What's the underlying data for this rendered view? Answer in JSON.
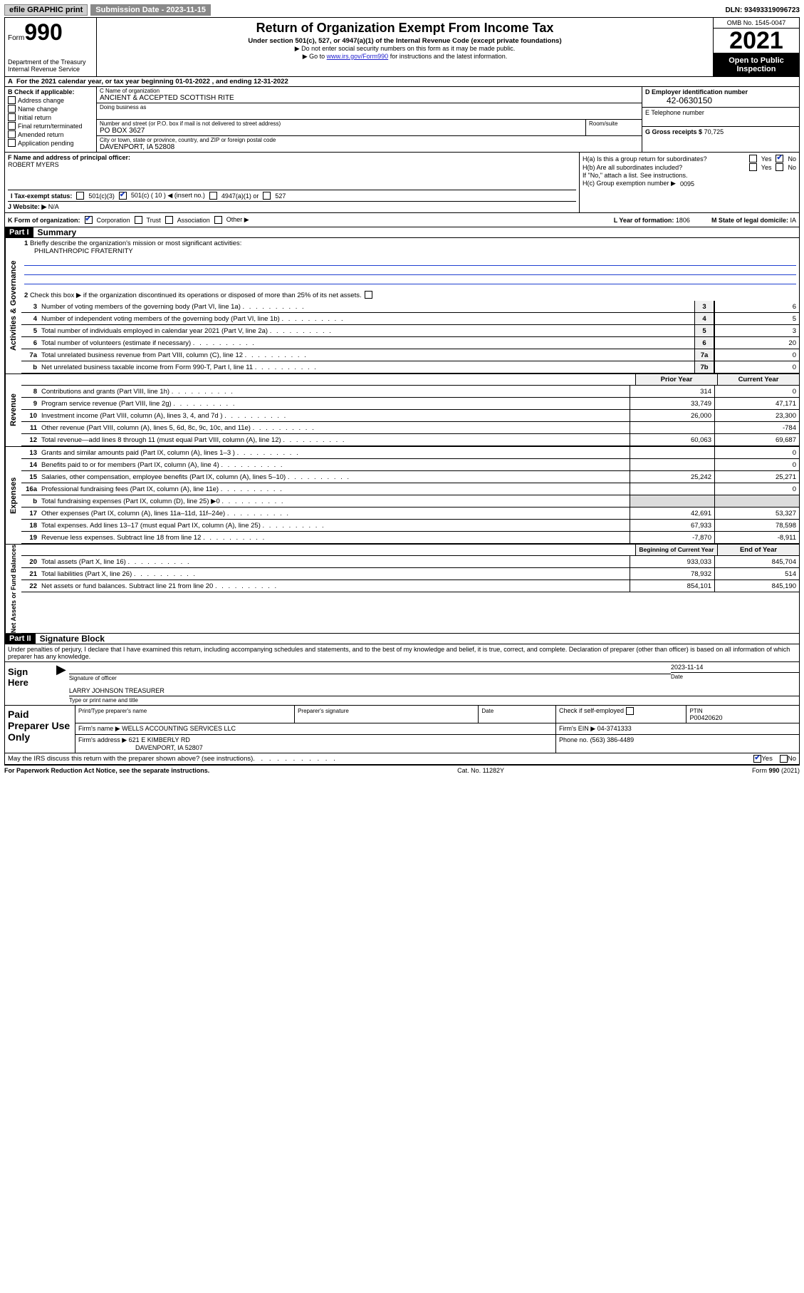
{
  "topbar": {
    "efile_label": "efile GRAPHIC print",
    "submission_label": "Submission Date - 2023-11-15",
    "dln_label": "DLN: 93493319096723"
  },
  "header": {
    "form_word": "Form",
    "form_num": "990",
    "dept": "Department of the Treasury",
    "irs": "Internal Revenue Service",
    "title": "Return of Organization Exempt From Income Tax",
    "subtitle": "Under section 501(c), 527, or 4947(a)(1) of the Internal Revenue Code (except private foundations)",
    "no_ssn": "▶ Do not enter social security numbers on this form as it may be made public.",
    "goto_pre": "▶ Go to ",
    "goto_link": "www.irs.gov/Form990",
    "goto_post": " for instructions and the latest information.",
    "omb": "OMB No. 1545-0047",
    "year": "2021",
    "open_public": "Open to Public Inspection"
  },
  "row_a": {
    "label_a": "A",
    "text": "For the 2021 calendar year, or tax year beginning 01-01-2022    , and ending 12-31-2022"
  },
  "col_b": {
    "header": "B Check if applicable:",
    "items": [
      "Address change",
      "Name change",
      "Initial return",
      "Final return/terminated",
      "Amended return",
      "Application pending"
    ]
  },
  "col_c": {
    "name_lbl": "C Name of organization",
    "name_val": "ANCIENT & ACCEPTED SCOTTISH RITE",
    "dba_lbl": "Doing business as",
    "dba_val": "",
    "addr_lbl": "Number and street (or P.O. box if mail is not delivered to street address)",
    "addr_val": "PO BOX 3627",
    "room_lbl": "Room/suite",
    "city_lbl": "City or town, state or province, country, and ZIP or foreign postal code",
    "city_val": "DAVENPORT, IA  52808"
  },
  "col_de": {
    "d_lbl": "D Employer identification number",
    "d_val": "42-0630150",
    "e_lbl": "E Telephone number",
    "e_val": "",
    "g_lbl": "G Gross receipts $",
    "g_val": "70,725"
  },
  "row_f": {
    "lbl": "F  Name and address of principal officer:",
    "val": "ROBERT MYERS"
  },
  "row_h": {
    "ha_lbl": "H(a)  Is this a group return for subordinates?",
    "hb_lbl": "H(b)  Are all subordinates included?",
    "hb_note": "If \"No,\" attach a list. See instructions.",
    "hc_lbl": "H(c)  Group exemption number ▶",
    "hc_val": "0095",
    "yes": "Yes",
    "no": "No"
  },
  "row_i": {
    "lbl": "I   Tax-exempt status:",
    "opt1": "501(c)(3)",
    "opt2": "501(c) ( 10 ) ◀ (insert no.)",
    "opt3": "4947(a)(1) or",
    "opt4": "527"
  },
  "row_j": {
    "lbl": "J   Website: ▶",
    "val": "N/A"
  },
  "row_k": {
    "lbl": "K Form of organization:",
    "opts": [
      "Corporation",
      "Trust",
      "Association",
      "Other ▶"
    ],
    "l_lbl": "L Year of formation:",
    "l_val": "1806",
    "m_lbl": "M State of legal domicile:",
    "m_val": "IA"
  },
  "part1": {
    "header": "Part I",
    "title": "Summary",
    "q1": "Briefly describe the organization's mission or most significant activities:",
    "q1_val": "PHILANTHROPIC FRATERNITY",
    "q2": "Check this box ▶        if the organization discontinued its operations or disposed of more than 25% of its net assets.",
    "lines_gov": [
      {
        "n": "3",
        "d": "Number of voting members of the governing body (Part VI, line 1a)",
        "box": "3",
        "v": "6"
      },
      {
        "n": "4",
        "d": "Number of independent voting members of the governing body (Part VI, line 1b)",
        "box": "4",
        "v": "5"
      },
      {
        "n": "5",
        "d": "Total number of individuals employed in calendar year 2021 (Part V, line 2a)",
        "box": "5",
        "v": "3"
      },
      {
        "n": "6",
        "d": "Total number of volunteers (estimate if necessary)",
        "box": "6",
        "v": "20"
      },
      {
        "n": "7a",
        "d": "Total unrelated business revenue from Part VIII, column (C), line 12",
        "box": "7a",
        "v": "0"
      },
      {
        "n": "b",
        "d": "Net unrelated business taxable income from Form 990-T, Part I, line 11",
        "box": "7b",
        "v": "0"
      }
    ],
    "col_head1": "Prior Year",
    "col_head2": "Current Year",
    "lines_rev": [
      {
        "n": "8",
        "d": "Contributions and grants (Part VIII, line 1h)",
        "v1": "314",
        "v2": "0"
      },
      {
        "n": "9",
        "d": "Program service revenue (Part VIII, line 2g)",
        "v1": "33,749",
        "v2": "47,171"
      },
      {
        "n": "10",
        "d": "Investment income (Part VIII, column (A), lines 3, 4, and 7d )",
        "v1": "26,000",
        "v2": "23,300"
      },
      {
        "n": "11",
        "d": "Other revenue (Part VIII, column (A), lines 5, 6d, 8c, 9c, 10c, and 11e)",
        "v1": "",
        "v2": "-784"
      },
      {
        "n": "12",
        "d": "Total revenue—add lines 8 through 11 (must equal Part VIII, column (A), line 12)",
        "v1": "60,063",
        "v2": "69,687"
      }
    ],
    "lines_exp": [
      {
        "n": "13",
        "d": "Grants and similar amounts paid (Part IX, column (A), lines 1–3 )",
        "v1": "",
        "v2": "0"
      },
      {
        "n": "14",
        "d": "Benefits paid to or for members (Part IX, column (A), line 4)",
        "v1": "",
        "v2": "0"
      },
      {
        "n": "15",
        "d": "Salaries, other compensation, employee benefits (Part IX, column (A), lines 5–10)",
        "v1": "25,242",
        "v2": "25,271"
      },
      {
        "n": "16a",
        "d": "Professional fundraising fees (Part IX, column (A), line 11e)",
        "v1": "",
        "v2": "0"
      },
      {
        "n": "b",
        "d": "Total fundraising expenses (Part IX, column (D), line 25) ▶0",
        "v1": "",
        "v2": "",
        "shade": true
      },
      {
        "n": "17",
        "d": "Other expenses (Part IX, column (A), lines 11a–11d, 11f–24e)",
        "v1": "42,691",
        "v2": "53,327"
      },
      {
        "n": "18",
        "d": "Total expenses. Add lines 13–17 (must equal Part IX, column (A), line 25)",
        "v1": "67,933",
        "v2": "78,598"
      },
      {
        "n": "19",
        "d": "Revenue less expenses. Subtract line 18 from line 12",
        "v1": "-7,870",
        "v2": "-8,911"
      }
    ],
    "col_head3": "Beginning of Current Year",
    "col_head4": "End of Year",
    "lines_net": [
      {
        "n": "20",
        "d": "Total assets (Part X, line 16)",
        "v1": "933,033",
        "v2": "845,704"
      },
      {
        "n": "21",
        "d": "Total liabilities (Part X, line 26)",
        "v1": "78,932",
        "v2": "514"
      },
      {
        "n": "22",
        "d": "Net assets or fund balances. Subtract line 21 from line 20",
        "v1": "854,101",
        "v2": "845,190"
      }
    ]
  },
  "part2": {
    "header": "Part II",
    "title": "Signature Block",
    "penalty": "Under penalties of perjury, I declare that I have examined this return, including accompanying schedules and statements, and to the best of my knowledge and belief, it is true, correct, and complete. Declaration of preparer (other than officer) is based on all information of which preparer has any knowledge.",
    "sign_here": "Sign Here",
    "sig_officer_lbl": "Signature of officer",
    "date_lbl": "Date",
    "sig_date": "2023-11-14",
    "name_title": "LARRY JOHNSON  TREASURER",
    "name_title_lbl": "Type or print name and title",
    "paid_lbl": "Paid Preparer Use Only",
    "prep_name_lbl": "Print/Type preparer's name",
    "prep_sig_lbl": "Preparer's signature",
    "prep_date_lbl": "Date",
    "check_if": "Check          if self-employed",
    "ptin_lbl": "PTIN",
    "ptin_val": "P00420620",
    "firm_name_lbl": "Firm's name     ▶",
    "firm_name_val": "WELLS ACCOUNTING SERVICES LLC",
    "firm_ein_lbl": "Firm's EIN ▶",
    "firm_ein_val": "04-3741333",
    "firm_addr_lbl": "Firm's address ▶",
    "firm_addr_val1": "621 E KIMBERLY RD",
    "firm_addr_val2": "DAVENPORT, IA  52807",
    "phone_lbl": "Phone no.",
    "phone_val": "(563) 386-4489",
    "may_irs": "May the IRS discuss this return with the preparer shown above? (see instructions)",
    "yes": "Yes",
    "no": "No"
  },
  "footer": {
    "left": "For Paperwork Reduction Act Notice, see the separate instructions.",
    "mid": "Cat. No. 11282Y",
    "right": "Form 990 (2021)"
  },
  "side_labels": {
    "gov": "Activities & Governance",
    "rev": "Revenue",
    "exp": "Expenses",
    "net": "Net Assets or Fund Balances"
  }
}
